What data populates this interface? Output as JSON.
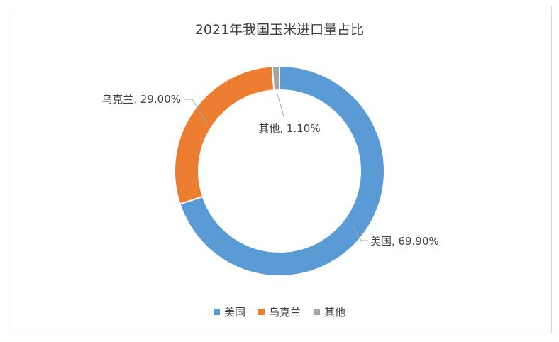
{
  "chart_data": {
    "type": "pie",
    "variant": "donut",
    "title": "2021年我国玉米进口量占比",
    "categories": [
      "美国",
      "乌克兰",
      "其他"
    ],
    "values": [
      69.9,
      29.0,
      1.1
    ],
    "value_labels": [
      "69.90%",
      "29.00%",
      "1.10%"
    ],
    "data_labels": [
      "美国, 69.90%",
      "乌克兰, 29.00%",
      "其他, 1.10%"
    ],
    "colors": [
      "#5b9bd5",
      "#ed7d31",
      "#a5a5a5"
    ],
    "legend_position": "bottom",
    "grid": false
  }
}
